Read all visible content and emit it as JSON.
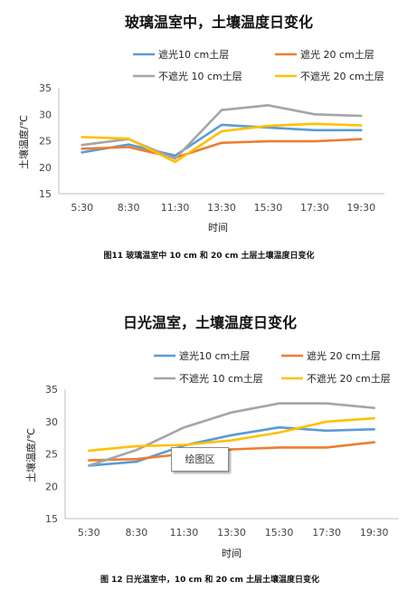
{
  "chart_data": [
    {
      "type": "line",
      "title": "玻璃温室中，土壤温度日变化",
      "categories": [
        "5:30",
        "8:30",
        "11:30",
        "13:30",
        "15:30",
        "17:30",
        "19:30"
      ],
      "xlabel": "时间",
      "ylabel": "土壤温度/℃",
      "ylim": [
        15,
        35
      ],
      "yticks": [
        15,
        20,
        25,
        30,
        35
      ],
      "grid": false,
      "legend_position": "top",
      "series": [
        {
          "name": "遮光10 cm土层",
          "color": "#5b9bd5",
          "values": [
            22.8,
            24.3,
            22.2,
            28.0,
            27.5,
            27.0,
            27.0
          ]
        },
        {
          "name": "遮光 20 cm土层",
          "color": "#ed7d31",
          "values": [
            23.5,
            23.8,
            21.8,
            24.6,
            24.9,
            24.9,
            25.3
          ]
        },
        {
          "name": "不遮光 10 cm土层",
          "color": "#a5a5a5",
          "values": [
            24.2,
            25.3,
            21.6,
            30.8,
            31.7,
            30.0,
            29.7
          ]
        },
        {
          "name": "不遮光 20 cm土层",
          "color": "#ffc000",
          "values": [
            25.7,
            25.4,
            21.0,
            26.8,
            27.8,
            28.2,
            27.9
          ]
        }
      ],
      "caption": "图11  玻璃温室中 10 cm 和 20 cm 土层土壤温度日变化"
    },
    {
      "type": "line",
      "title": "日光温室，土壤温度日变化",
      "categories": [
        "5:30",
        "8:30",
        "11:30",
        "13:30",
        "15:30",
        "17:30",
        "19:30"
      ],
      "xlabel": "时间",
      "ylabel": "土壤温度/℃",
      "ylim": [
        15,
        35
      ],
      "yticks": [
        15,
        20,
        25,
        30,
        35
      ],
      "grid": false,
      "legend_position": "top",
      "series": [
        {
          "name": "遮光10 cm土层",
          "color": "#5b9bd5",
          "values": [
            23.2,
            23.8,
            26.3,
            27.9,
            29.1,
            28.6,
            28.8
          ]
        },
        {
          "name": "遮光 20 cm土层",
          "color": "#ed7d31",
          "values": [
            24.0,
            24.2,
            25.0,
            25.7,
            26.0,
            26.0,
            26.8
          ]
        },
        {
          "name": "不遮光 10 cm土层",
          "color": "#a5a5a5",
          "values": [
            23.2,
            25.6,
            29.1,
            31.4,
            32.8,
            32.8,
            32.1
          ]
        },
        {
          "name": "不遮光 20 cm土层",
          "color": "#ffc000",
          "values": [
            25.5,
            26.2,
            26.4,
            27.1,
            28.3,
            30.0,
            30.5
          ]
        }
      ],
      "tooltip": "绘图区",
      "caption": "图 12  日光温室中，10 cm 和 20 cm 土层土壤温度日变化"
    }
  ]
}
